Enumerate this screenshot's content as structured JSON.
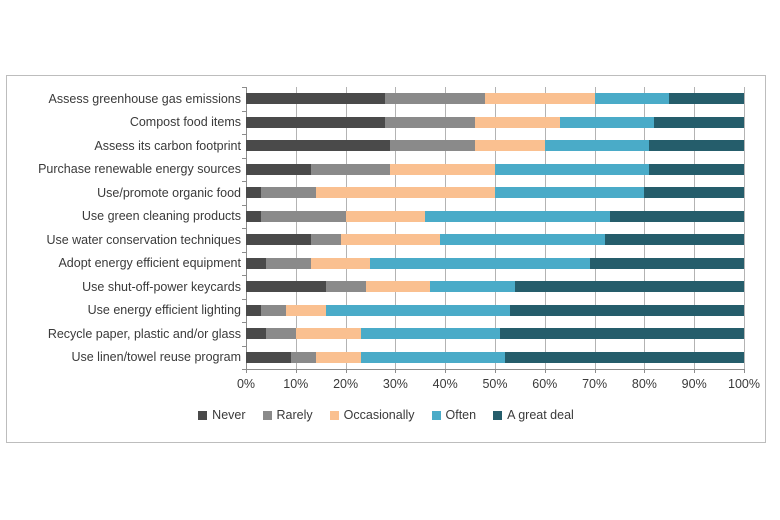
{
  "chart_data": {
    "type": "bar",
    "variant": "horizontal-stacked",
    "title": "",
    "xlabel": "",
    "ylabel": "",
    "xlim": [
      0,
      100
    ],
    "grid": true,
    "legend_position": "bottom",
    "x_tick_labels": [
      "0%",
      "10%",
      "20%",
      "30%",
      "40%",
      "50%",
      "60%",
      "70%",
      "80%",
      "90%",
      "100%"
    ],
    "x_tick_values": [
      0,
      10,
      20,
      30,
      40,
      50,
      60,
      70,
      80,
      90,
      100
    ],
    "categories": [
      "Assess greenhouse gas emissions",
      "Compost food items",
      "Assess its carbon footprint",
      "Purchase renewable energy sources",
      "Use/promote organic food",
      "Use green cleaning products",
      "Use water conservation techniques",
      "Adopt energy efficient equipment",
      "Use shut-off-power keycards",
      "Use energy efficient lighting",
      "Recycle paper, plastic and/or glass",
      "Use linen/towel reuse program"
    ],
    "series": [
      {
        "name": "Never",
        "color": "#4a4a4a",
        "values": [
          28,
          28,
          29,
          13,
          3,
          3,
          13,
          4,
          16,
          3,
          4,
          9
        ]
      },
      {
        "name": "Rarely",
        "color": "#8a8a8a",
        "values": [
          20,
          18,
          17,
          16,
          11,
          17,
          6,
          9,
          8,
          5,
          6,
          5
        ]
      },
      {
        "name": "Occasionally",
        "color": "#fac090",
        "values": [
          22,
          17,
          14,
          21,
          36,
          16,
          20,
          12,
          13,
          8,
          13,
          9
        ]
      },
      {
        "name": "Often",
        "color": "#4aabc8",
        "values": [
          15,
          19,
          21,
          31,
          30,
          37,
          33,
          44,
          17,
          37,
          28,
          29
        ]
      },
      {
        "name": "A great deal",
        "color": "#255d6b",
        "values": [
          15,
          18,
          19,
          19,
          20,
          27,
          28,
          31,
          46,
          47,
          49,
          48
        ]
      }
    ]
  }
}
